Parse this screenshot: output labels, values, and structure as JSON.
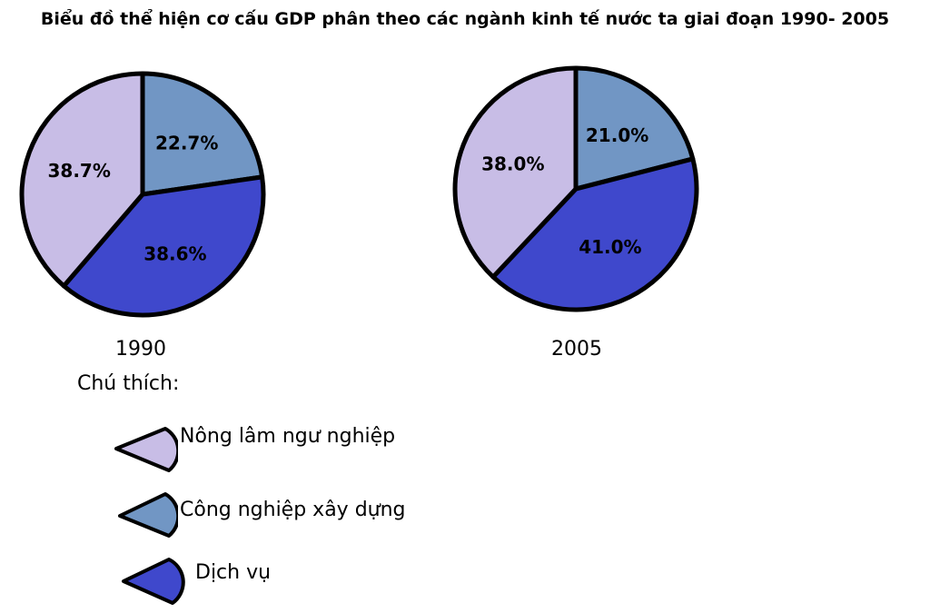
{
  "chart_data": {
    "type": "pie",
    "title": "Biểu đồ thể hiện cơ cấu GDP phân theo các ngành kinh tế nước ta giai đoạn 1990- 2005",
    "legend_title": "Chú thích:",
    "categories": [
      "Nông lâm ngư nghiệp",
      "Công nghiệp xây dựng",
      "Dịch vụ"
    ],
    "colors": [
      "#c8bde6",
      "#7196c4",
      "#3f48cc"
    ],
    "outline_color": "#000000",
    "series": [
      {
        "label": "1990",
        "values": [
          38.7,
          22.7,
          38.6
        ],
        "value_labels": [
          "38.7%",
          "22.7%",
          "38.6%"
        ]
      },
      {
        "label": "2005",
        "values": [
          38.0,
          21.0,
          41.0
        ],
        "value_labels": [
          "38.0%",
          "21.0%",
          "41.0%"
        ]
      }
    ],
    "legend_placement": "bottom-left"
  }
}
